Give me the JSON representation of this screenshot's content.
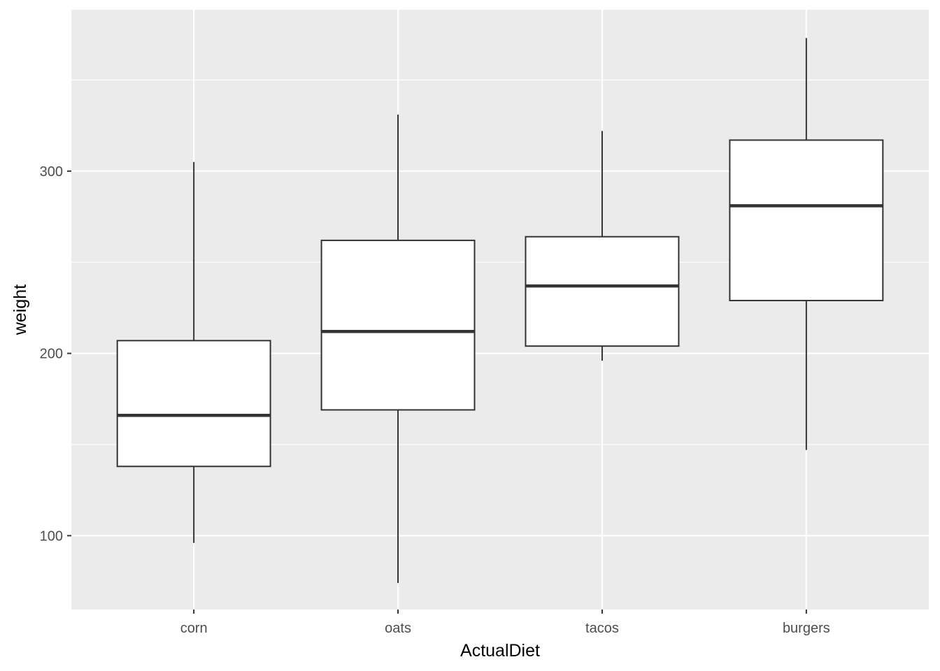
{
  "chart_data": {
    "type": "boxplot",
    "xlabel": "ActualDiet",
    "ylabel": "weight",
    "categories": [
      "corn",
      "oats",
      "tacos",
      "burgers"
    ],
    "boxes": [
      {
        "category": "corn",
        "whisker_low": 96,
        "q1": 138,
        "median": 166,
        "q3": 207,
        "whisker_high": 305
      },
      {
        "category": "oats",
        "whisker_low": 74,
        "q1": 169,
        "median": 212,
        "q3": 262,
        "whisker_high": 331
      },
      {
        "category": "tacos",
        "whisker_low": 196,
        "q1": 204,
        "median": 237,
        "q3": 264,
        "whisker_high": 322
      },
      {
        "category": "burgers",
        "whisker_low": 147,
        "q1": 229,
        "median": 281,
        "q3": 317,
        "whisker_high": 373
      }
    ],
    "ylim": [
      59.5,
      388.5
    ],
    "yticks": [
      100,
      200,
      300
    ],
    "ytick_labels": [
      "100",
      "200",
      "300"
    ],
    "grid": true,
    "colors": {
      "panel_bg": "#ebebeb",
      "grid": "#ffffff",
      "box_fill": "#ffffff",
      "box_line": "#333333",
      "tick_text": "#4d4d4d",
      "tick_line": "#333333"
    }
  }
}
